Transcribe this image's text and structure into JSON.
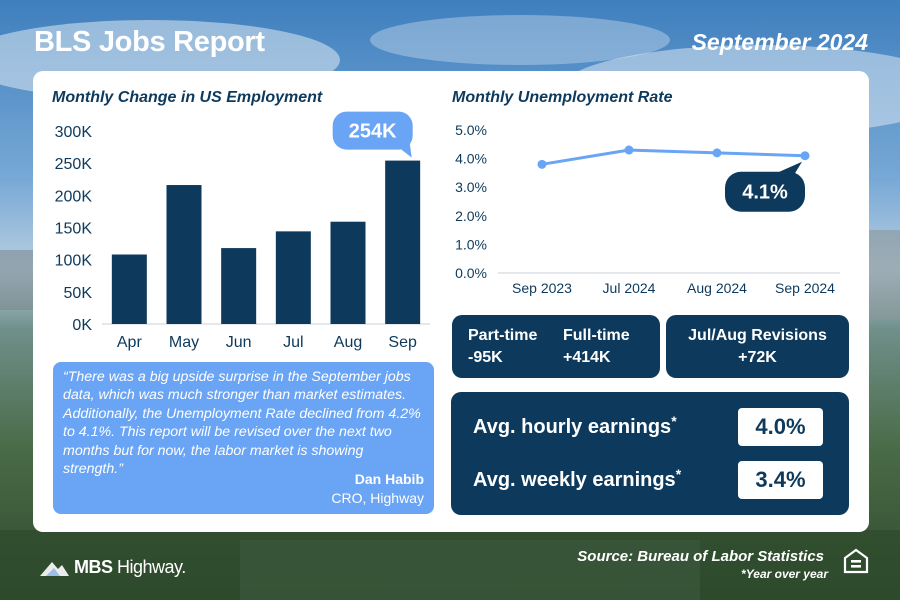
{
  "header": {
    "title": "BLS Jobs Report",
    "date": "September 2024"
  },
  "chart_data": [
    {
      "type": "bar",
      "title": "Monthly Change in US Employment",
      "categories": [
        "Apr",
        "May",
        "Jun",
        "Jul",
        "Aug",
        "Sep"
      ],
      "values": [
        108000,
        216000,
        118000,
        144000,
        159000,
        254000
      ],
      "ylim": [
        0,
        300000
      ],
      "yticks": [
        "0K",
        "50K",
        "100K",
        "150K",
        "200K",
        "250K",
        "300K"
      ],
      "callout": "254K",
      "grid": false,
      "bar_color": "#0d3a5c"
    },
    {
      "type": "line",
      "title": "Monthly Unemployment Rate",
      "categories": [
        "Sep 2023",
        "Jul 2024",
        "Aug 2024",
        "Sep 2024"
      ],
      "values": [
        3.8,
        4.3,
        4.2,
        4.1
      ],
      "ylim": [
        0,
        5
      ],
      "yticks": [
        "0.0%",
        "1.0%",
        "2.0%",
        "3.0%",
        "4.0%",
        "5.0%"
      ],
      "callout": "4.1%",
      "grid": false,
      "line_color": "#6aa4f4"
    }
  ],
  "quote": {
    "text": "“There was a big upside surprise in the September jobs data, which was much stronger than market estimates. Additionally, the Unemployment Rate declined from 4.2% to 4.1%. This report will be revised over the next two months but for now, the labor market is showing strength.”",
    "author": "Dan Habib",
    "role": "CRO, Highway"
  },
  "stats": {
    "part_time_label": "Part-time",
    "part_time_value": "-95K",
    "full_time_label": "Full-time",
    "full_time_value": "+414K",
    "revisions_label": "Jul/Aug Revisions",
    "revisions_value": "+72K",
    "hourly_label": "Avg. hourly earnings",
    "hourly_value": "4.0%",
    "weekly_label": "Avg. weekly earnings",
    "weekly_value": "3.4%",
    "asterisk": "*"
  },
  "footer": {
    "logo_bold": "MBS",
    "logo_light": "Highway",
    "trademark": ".",
    "source": "Source: Bureau of Labor Statistics",
    "note": "*Year over year"
  },
  "icons": [
    "mbs-highway-logo-icon",
    "equal-housing-icon"
  ],
  "colors": {
    "navy": "#0d3a5c",
    "accent_blue": "#6aa4f4"
  }
}
